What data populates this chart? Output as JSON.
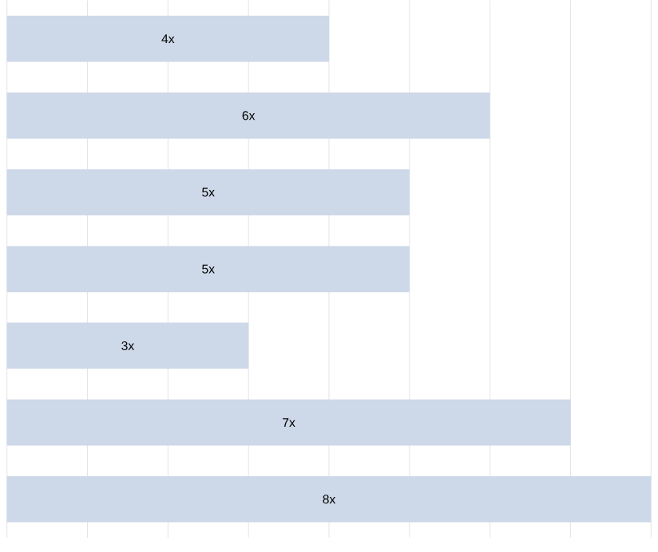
{
  "chart_data": {
    "type": "bar",
    "orientation": "horizontal",
    "categories": [
      null,
      null,
      null,
      null,
      null,
      null,
      null
    ],
    "values": [
      4,
      6,
      5,
      5,
      3,
      7,
      8
    ],
    "value_labels": [
      "4x",
      "6x",
      "5x",
      "5x",
      "3x",
      "7x",
      "8x"
    ],
    "color": "#cdd8e8",
    "grid": "x"
  }
}
